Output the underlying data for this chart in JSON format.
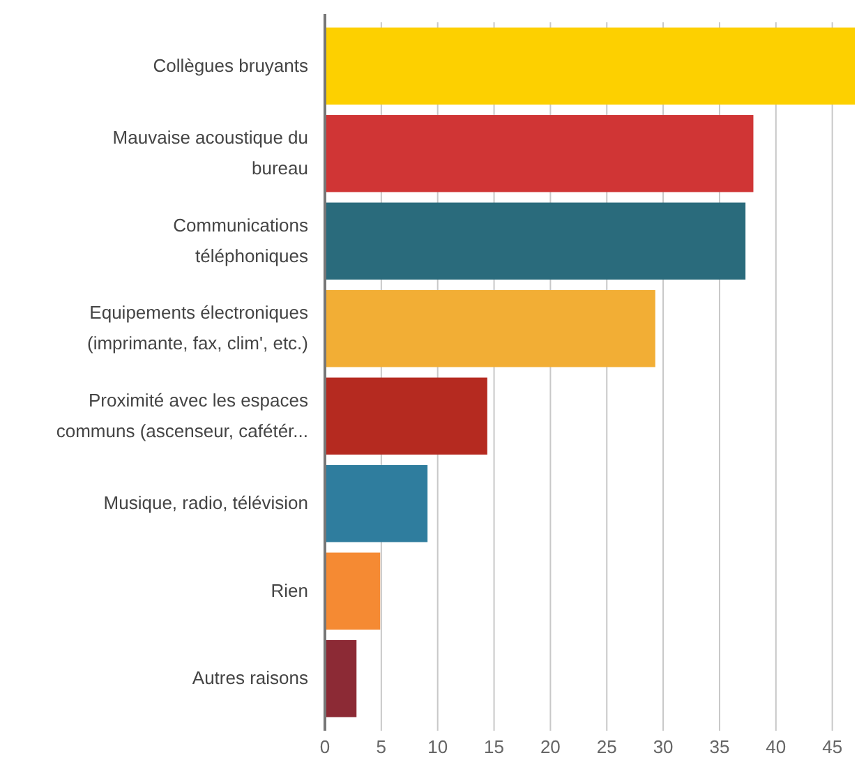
{
  "chart_data": {
    "type": "bar",
    "orientation": "horizontal",
    "categories": [
      "Collègues bruyants",
      "Mauvaise acoustique du\nbureau",
      "Communications\ntéléphoniques",
      "Equipements électroniques\n(imprimante, fax, clim', etc.)",
      "Proximité avec les espaces\ncommuns (ascenseur, cafétér...",
      "Musique, radio, télévision",
      "Rien",
      "Autres raisons"
    ],
    "values": [
      47,
      38,
      37.3,
      29.3,
      14.4,
      9.1,
      4.9,
      2.8
    ],
    "colors": [
      "#fdd000",
      "#d03535",
      "#2a6b7c",
      "#f2ae35",
      "#b52a20",
      "#2f7d9e",
      "#f58a33",
      "#8c2a35"
    ],
    "xlim": [
      0,
      47
    ],
    "xticks": [
      0,
      5,
      10,
      15,
      20,
      25,
      30,
      35,
      40,
      45
    ],
    "grid": "x"
  }
}
